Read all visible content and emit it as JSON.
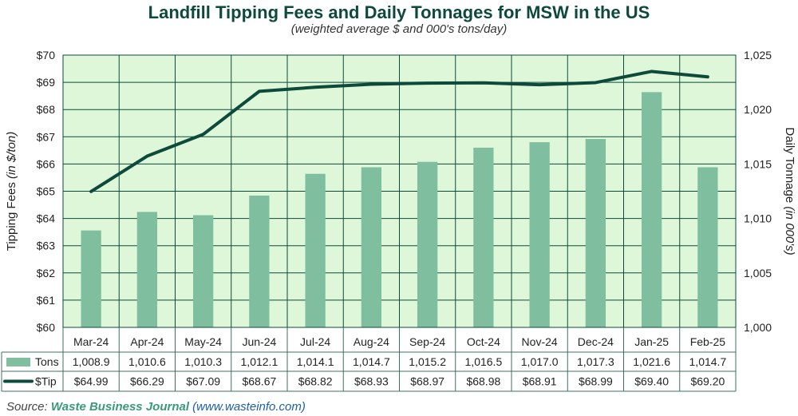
{
  "chart_data": {
    "type": "bar",
    "title": "Landfill Tipping Fees and Daily Tonnages for MSW in the US",
    "subtitle": "(weighted average $ and 000's tons/day)",
    "categories": [
      "Mar-24",
      "Apr-24",
      "May-24",
      "Jun-24",
      "Jul-24",
      "Aug-24",
      "Sep-24",
      "Oct-24",
      "Nov-24",
      "Dec-24",
      "Jan-25",
      "Feb-25"
    ],
    "series": [
      {
        "name": "Tons",
        "kind": "bar",
        "axis": "right",
        "values": [
          1008.9,
          1010.6,
          1010.3,
          1012.1,
          1014.1,
          1014.7,
          1015.2,
          1016.5,
          1017.0,
          1017.3,
          1021.6,
          1014.7
        ],
        "color": "#7fbf9f"
      },
      {
        "name": "$Tip",
        "kind": "line",
        "axis": "left",
        "values": [
          64.99,
          66.29,
          67.09,
          68.67,
          68.82,
          68.93,
          68.97,
          68.98,
          68.91,
          68.99,
          69.4,
          69.2
        ],
        "color": "#0e4a3c"
      }
    ],
    "y_left": {
      "label": "Tipping Fees",
      "label_unit": "(in $/ton)",
      "ylim": [
        60,
        70
      ],
      "ticks": [
        60,
        61,
        62,
        63,
        64,
        65,
        66,
        67,
        68,
        69,
        70
      ],
      "tick_labels": [
        "$60",
        "$61",
        "$62",
        "$63",
        "$64",
        "$65",
        "$66",
        "$67",
        "$68",
        "$69",
        "$70"
      ]
    },
    "y_right": {
      "label": "Daily Tonnage",
      "label_unit": "(in 000's)",
      "ylim": [
        1000,
        1025
      ],
      "ticks": [
        1000,
        1005,
        1010,
        1015,
        1020,
        1025
      ],
      "tick_labels": [
        "1,000",
        "1,005",
        "1,010",
        "1,015",
        "1,020",
        "1,025"
      ]
    },
    "data_table": {
      "rows": [
        {
          "name": "Tons",
          "cells": [
            "1,008.9",
            "1,010.6",
            "1,010.3",
            "1,012.1",
            "1,014.1",
            "1,014.7",
            "1,015.2",
            "1,016.5",
            "1,017.0",
            "1,017.3",
            "1,021.6",
            "1,014.7"
          ]
        },
        {
          "name": "$Tip",
          "cells": [
            "$64.99",
            "$66.29",
            "$67.09",
            "$68.67",
            "$68.82",
            "$68.93",
            "$68.97",
            "$68.98",
            "$68.91",
            "$68.99",
            "$69.40",
            "$69.20"
          ]
        }
      ]
    },
    "grid": true,
    "plot_background": "#dff7d9",
    "grid_color": "#0e4a3c"
  },
  "source": {
    "prefix": "Source:",
    "name": "Waste Business Journal",
    "url": "(www.wasteinfo.com)"
  }
}
